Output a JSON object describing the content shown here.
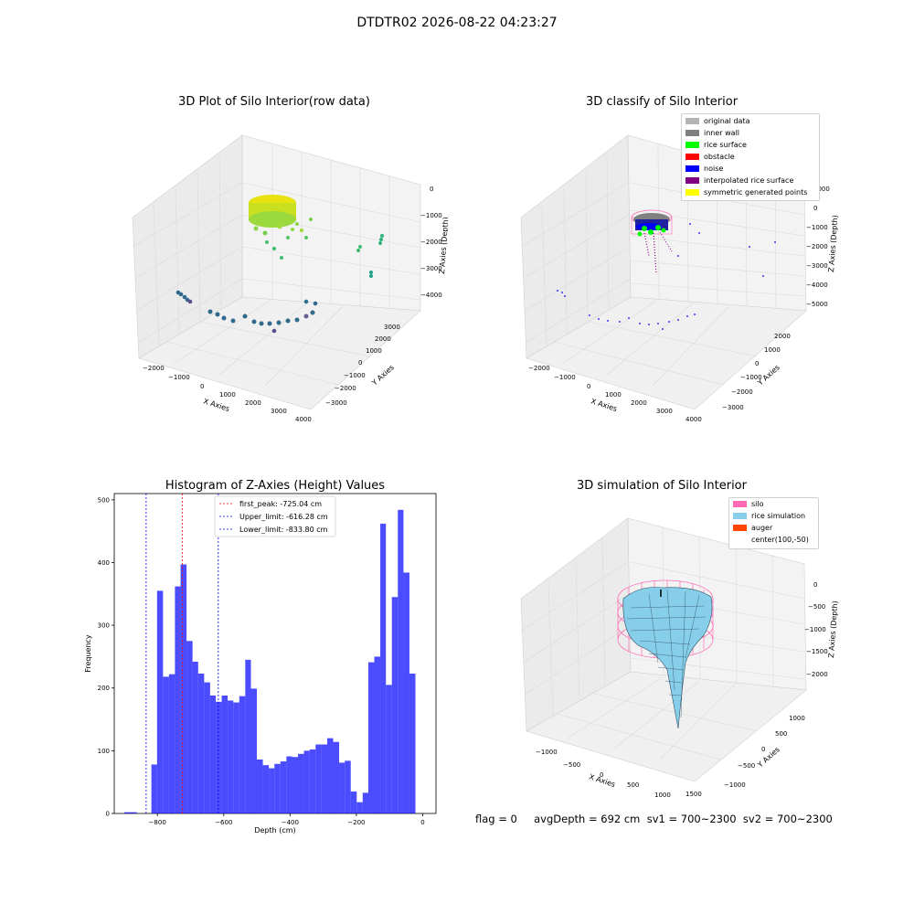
{
  "suptitle": "DTDTR02 2026-08-22 04:23:27",
  "panels": {
    "raw": {
      "title": "3D Plot of Silo Interior(row data)",
      "x_label": "X Axies",
      "y_label": "Y Axies",
      "z_label": "Z Axies (Depth)",
      "x_ticks": [
        "−2000",
        "−1000",
        "0",
        "1000",
        "2000",
        "3000",
        "4000"
      ],
      "y_ticks": [
        "3000",
        "2000",
        "1000",
        "0",
        "−1000",
        "−2000",
        "−3000"
      ],
      "z_ticks": [
        "0",
        "−1000",
        "−2000",
        "−3000",
        "−4000"
      ]
    },
    "classify": {
      "title": "3D classify of Silo Interior",
      "x_label": "X Axies",
      "y_label": "Y Axies",
      "z_label": "Z Axies (Depth)",
      "x_ticks": [
        "−2000",
        "−1000",
        "0",
        "1000",
        "2000",
        "3000",
        "4000"
      ],
      "y_ticks": [
        "2000",
        "1000",
        "0",
        "−1000",
        "−2000",
        "−3000"
      ],
      "z_ticks": [
        "1000",
        "0",
        "−1000",
        "−2000",
        "−3000",
        "−4000",
        "−5000"
      ],
      "legend": [
        {
          "label": "original data",
          "color": "#b4b4b4"
        },
        {
          "label": "inner wall",
          "color": "#808080"
        },
        {
          "label": "rice surface",
          "color": "#00ff00"
        },
        {
          "label": "obstacle",
          "color": "#ff0000"
        },
        {
          "label": "noise",
          "color": "#0000ff"
        },
        {
          "label": "interpolated rice surface",
          "color": "#800080"
        },
        {
          "label": "symmetric generated points",
          "color": "#ffff00"
        }
      ]
    },
    "simulation": {
      "title": "3D simulation of Silo Interior",
      "x_label": "X Axies",
      "y_label": "Y Axies",
      "z_label": "Z Axies (Depth)",
      "x_ticks": [
        "−1000",
        "−500",
        "0",
        "500",
        "1000",
        "1500"
      ],
      "y_ticks": [
        "1000",
        "500",
        "0",
        "−500",
        "−1000"
      ],
      "z_ticks": [
        "0",
        "−500",
        "−1000",
        "−1500",
        "−2000"
      ],
      "legend": [
        {
          "label": "silo",
          "color": "#ff69b4"
        },
        {
          "label": "rice simulation",
          "color": "#87ceeb"
        },
        {
          "label": "auger",
          "color": "#ff4500"
        },
        {
          "label": "center(100,-50)",
          "color": ""
        }
      ]
    }
  },
  "status_line": "flag = 0     avgDepth = 692 cm  sv1 = 700~2300  sv2 = 700~2300",
  "chart_data": {
    "type": "bar",
    "title": "Histogram of Z-Axies (Height) Values",
    "xlabel": "Depth (cm)",
    "ylabel": "Frequency",
    "xlim": [
      -930,
      40
    ],
    "ylim": [
      0,
      510
    ],
    "x_ticks": [
      -800,
      -600,
      -400,
      -200,
      0
    ],
    "x_tick_labels": [
      "−800",
      "−600",
      "−400",
      "−200",
      "0"
    ],
    "y_ticks": [
      0,
      100,
      200,
      300,
      400,
      500
    ],
    "y_tick_labels": [
      "0",
      "100",
      "200",
      "300",
      "400",
      "500"
    ],
    "bar_color": "#0000ff",
    "bins": [
      {
        "x0": -900,
        "x1": -862,
        "value": 2
      },
      {
        "x0": -818,
        "x1": -801,
        "value": 78
      },
      {
        "x0": -801,
        "x1": -783,
        "value": 355
      },
      {
        "x0": -783,
        "x1": -765,
        "value": 218
      },
      {
        "x0": -765,
        "x1": -747,
        "value": 222
      },
      {
        "x0": -747,
        "x1": -730,
        "value": 362
      },
      {
        "x0": -730,
        "x1": -712,
        "value": 397
      },
      {
        "x0": -712,
        "x1": -694,
        "value": 275
      },
      {
        "x0": -694,
        "x1": -677,
        "value": 242
      },
      {
        "x0": -677,
        "x1": -659,
        "value": 223
      },
      {
        "x0": -659,
        "x1": -641,
        "value": 209
      },
      {
        "x0": -641,
        "x1": -624,
        "value": 188
      },
      {
        "x0": -624,
        "x1": -606,
        "value": 178
      },
      {
        "x0": -606,
        "x1": -588,
        "value": 188
      },
      {
        "x0": -588,
        "x1": -571,
        "value": 180
      },
      {
        "x0": -571,
        "x1": -553,
        "value": 177
      },
      {
        "x0": -553,
        "x1": -535,
        "value": 187
      },
      {
        "x0": -535,
        "x1": -518,
        "value": 245
      },
      {
        "x0": -518,
        "x1": -500,
        "value": 199
      },
      {
        "x0": -500,
        "x1": -482,
        "value": 86
      },
      {
        "x0": -482,
        "x1": -464,
        "value": 77
      },
      {
        "x0": -464,
        "x1": -447,
        "value": 72
      },
      {
        "x0": -447,
        "x1": -429,
        "value": 79
      },
      {
        "x0": -429,
        "x1": -411,
        "value": 83
      },
      {
        "x0": -411,
        "x1": -394,
        "value": 91
      },
      {
        "x0": -394,
        "x1": -376,
        "value": 90
      },
      {
        "x0": -376,
        "x1": -358,
        "value": 95
      },
      {
        "x0": -358,
        "x1": -341,
        "value": 100
      },
      {
        "x0": -341,
        "x1": -323,
        "value": 102
      },
      {
        "x0": -323,
        "x1": -305,
        "value": 110
      },
      {
        "x0": -305,
        "x1": -288,
        "value": 110
      },
      {
        "x0": -288,
        "x1": -270,
        "value": 120
      },
      {
        "x0": -270,
        "x1": -252,
        "value": 114
      },
      {
        "x0": -252,
        "x1": -235,
        "value": 81
      },
      {
        "x0": -235,
        "x1": -217,
        "value": 84
      },
      {
        "x0": -217,
        "x1": -199,
        "value": 35
      },
      {
        "x0": -199,
        "x1": -181,
        "value": 18
      },
      {
        "x0": -181,
        "x1": -164,
        "value": 33
      },
      {
        "x0": -164,
        "x1": -146,
        "value": 241
      },
      {
        "x0": -146,
        "x1": -128,
        "value": 250
      },
      {
        "x0": -128,
        "x1": -111,
        "value": 462
      },
      {
        "x0": -111,
        "x1": -93,
        "value": 205
      },
      {
        "x0": -93,
        "x1": -75,
        "value": 345
      },
      {
        "x0": -75,
        "x1": -58,
        "value": 484
      },
      {
        "x0": -58,
        "x1": -40,
        "value": 384
      },
      {
        "x0": -40,
        "x1": -22,
        "value": 223
      }
    ],
    "vlines": [
      {
        "x": -725.04,
        "color": "#ff0000",
        "label": "first_peak: -725.04 cm"
      },
      {
        "x": -616.28,
        "color": "#0000ff",
        "label": "Upper_limit: -616.28 cm"
      },
      {
        "x": -833.8,
        "color": "#0000ff",
        "label": "Lower_limit: -833.80 cm"
      }
    ],
    "legend_position": "upper-center"
  }
}
